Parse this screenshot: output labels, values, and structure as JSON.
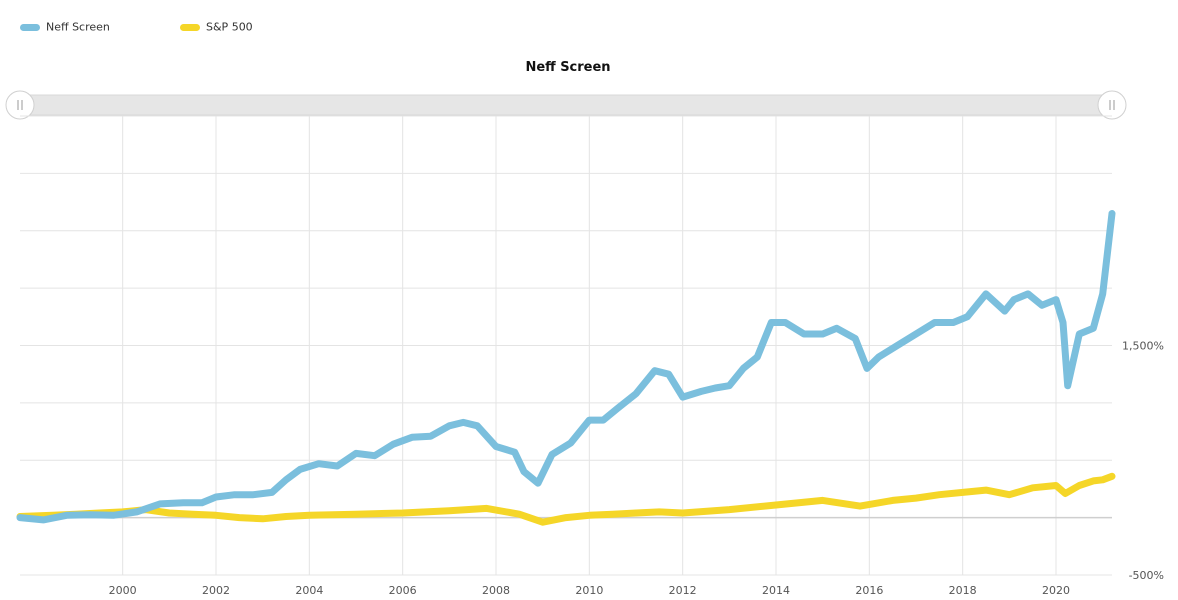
{
  "chart_data": {
    "type": "line",
    "title": "Neff Screen",
    "x_ticks": [
      "2000",
      "2002",
      "2004",
      "2006",
      "2008",
      "2010",
      "2012",
      "2014",
      "2016",
      "2018",
      "2020"
    ],
    "y_ticks": [
      {
        "value": 1500,
        "label": "1,500%"
      },
      {
        "value": -500,
        "label": "-500%"
      }
    ],
    "xlim": [
      1997.8,
      2021.2
    ],
    "ylim": [
      -500,
      3500
    ],
    "grid": true,
    "legend_position": "top-left",
    "series": [
      {
        "name": "Neff Screen",
        "color": "#7bbfdd",
        "x": [
          1997.8,
          1998.3,
          1998.8,
          1999.3,
          1999.8,
          2000.3,
          2000.8,
          2001.3,
          2001.7,
          2002.0,
          2002.4,
          2002.8,
          2003.2,
          2003.5,
          2003.8,
          2004.2,
          2004.6,
          2005.0,
          2005.4,
          2005.8,
          2006.2,
          2006.6,
          2007.0,
          2007.3,
          2007.6,
          2008.0,
          2008.4,
          2008.6,
          2008.9,
          2009.2,
          2009.6,
          2010.0,
          2010.3,
          2010.6,
          2011.0,
          2011.4,
          2011.7,
          2012.0,
          2012.4,
          2012.7,
          2013.0,
          2013.3,
          2013.6,
          2013.9,
          2014.2,
          2014.6,
          2015.0,
          2015.3,
          2015.7,
          2015.95,
          2016.2,
          2016.6,
          2017.0,
          2017.4,
          2017.8,
          2018.1,
          2018.5,
          2018.9,
          2019.1,
          2019.4,
          2019.7,
          2020.0,
          2020.15,
          2020.25,
          2020.5,
          2020.8,
          2021.0,
          2021.2
        ],
        "y": [
          0,
          -20,
          20,
          25,
          20,
          50,
          120,
          130,
          130,
          180,
          200,
          200,
          220,
          330,
          420,
          470,
          450,
          560,
          540,
          640,
          700,
          710,
          800,
          830,
          800,
          620,
          570,
          400,
          300,
          550,
          650,
          850,
          850,
          950,
          1080,
          1280,
          1250,
          1050,
          1100,
          1130,
          1150,
          1300,
          1400,
          1700,
          1700,
          1600,
          1600,
          1650,
          1560,
          1300,
          1400,
          1500,
          1600,
          1700,
          1700,
          1750,
          1950,
          1800,
          1900,
          1950,
          1850,
          1900,
          1700,
          1150,
          1600,
          1650,
          1950,
          2650
        ]
      },
      {
        "name": "S&P 500",
        "color": "#f5d628",
        "x": [
          1997.8,
          1998.5,
          1999.0,
          1999.5,
          2000.0,
          2000.5,
          2001.0,
          2001.5,
          2002.0,
          2002.5,
          2003.0,
          2003.5,
          2004.0,
          2005.0,
          2006.0,
          2007.0,
          2007.8,
          2008.5,
          2009.0,
          2009.5,
          2010.0,
          2010.5,
          2011.0,
          2011.5,
          2012.0,
          2013.0,
          2014.0,
          2015.0,
          2015.8,
          2016.5,
          2017.0,
          2017.5,
          2018.0,
          2018.5,
          2019.0,
          2019.5,
          2020.0,
          2020.2,
          2020.5,
          2020.8,
          2021.0,
          2021.2
        ],
        "y": [
          10,
          20,
          30,
          40,
          50,
          70,
          40,
          30,
          20,
          0,
          -10,
          10,
          20,
          30,
          40,
          60,
          80,
          30,
          -40,
          0,
          20,
          30,
          40,
          50,
          40,
          70,
          110,
          150,
          100,
          150,
          170,
          200,
          220,
          240,
          200,
          260,
          280,
          210,
          280,
          320,
          330,
          360
        ]
      }
    ]
  }
}
